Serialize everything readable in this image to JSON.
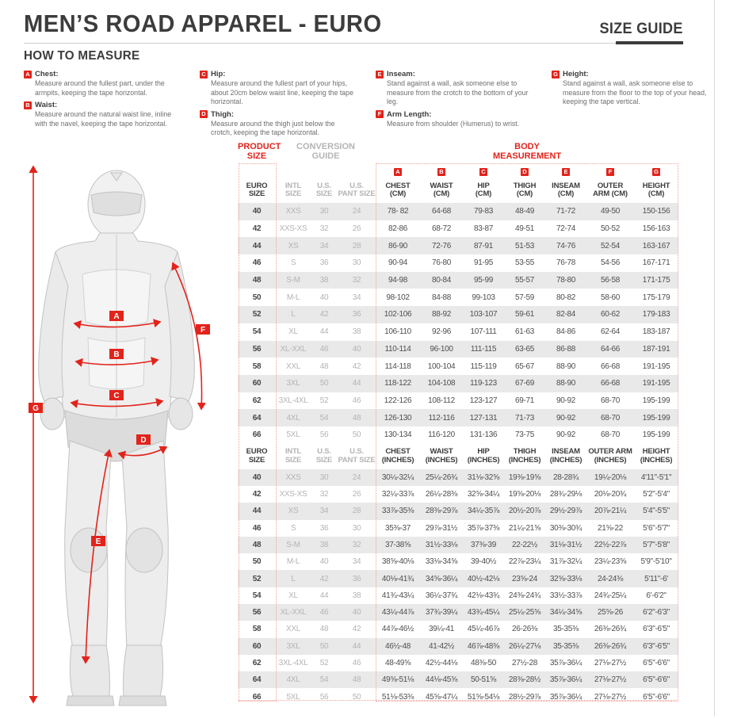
{
  "header": {
    "title": "MEN’S ROAD APPAREL - EURO",
    "badge": "SIZE GUIDE"
  },
  "how_to_measure": {
    "title": "HOW TO MEASURE",
    "columns": [
      [
        {
          "letter": "A",
          "name": "Chest:",
          "desc": "Measure around the fullest part, under the armpits, keeping the tape horizontal."
        },
        {
          "letter": "B",
          "name": "Waist:",
          "desc": "Measure around the natural waist line, inline with the navel, keeping the tape horizontal."
        }
      ],
      [
        {
          "letter": "C",
          "name": "Hip:",
          "desc": "Measure around the fullest part of your hips, about 20cm below waist line, keeping the tape horizontal."
        },
        {
          "letter": "D",
          "name": "Thigh:",
          "desc": "Measure around the thigh just below the crotch, keeping the tape horizontal."
        }
      ],
      [
        {
          "letter": "E",
          "name": "Inseam:",
          "desc": "Stand against a wall, ask someone else to measure from the crotch to the bottom of your leg."
        },
        {
          "letter": "F",
          "name": "Arm Length:",
          "desc": "Measure from shoulder (Humerus) to wrist."
        }
      ],
      [
        {
          "letter": "G",
          "name": "Height:",
          "desc": "Stand against a wall, ask someone else to measure from the floor to the top of your head, keeping the tape vertical."
        }
      ]
    ]
  },
  "figure": {
    "labels": [
      "A",
      "B",
      "C",
      "D",
      "E",
      "F",
      "G"
    ]
  },
  "table": {
    "group_product": "PRODUCT\nSIZE",
    "group_conversion": "CONVERSION\nGUIDE",
    "group_body": "BODY\nMEASUREMENT",
    "letters": [
      "A",
      "B",
      "C",
      "D",
      "E",
      "F",
      "G"
    ],
    "cm_header": [
      "EURO\nSIZE",
      "INTL\nSIZE",
      "U.S.\nSIZE",
      "U.S.\nPANT SIZE",
      "CHEST\n(CM)",
      "WAIST\n(CM)",
      "HIP\n(CM)",
      "THIGH\n(CM)",
      "INSEAM\n(CM)",
      "OUTER\nARM (CM)",
      "HEIGHT\n(CM)"
    ],
    "inch_header": [
      "EURO\nSIZE",
      "INTL\nSIZE",
      "U.S.\nSIZE",
      "U.S.\nPANT SIZE",
      "CHEST\n(INCHES)",
      "WAIST\n(INCHES)",
      "HIP\n(INCHES)",
      "THIGH\n(INCHES)",
      "INSEAM\n(INCHES)",
      "OUTER ARM\n(INCHES)",
      "HEIGHT\n(INCHES)"
    ],
    "cm_rows": [
      [
        "40",
        "XXS",
        "30",
        "24",
        "78- 82",
        "64-68",
        "79-83",
        "48-49",
        "71-72",
        "49-50",
        "150-156"
      ],
      [
        "42",
        "XXS-XS",
        "32",
        "26",
        "82-86",
        "68-72",
        "83-87",
        "49-51",
        "72-74",
        "50-52",
        "156-163"
      ],
      [
        "44",
        "XS",
        "34",
        "28",
        "86-90",
        "72-76",
        "87-91",
        "51-53",
        "74-76",
        "52-54",
        "163-167"
      ],
      [
        "46",
        "S",
        "36",
        "30",
        "90-94",
        "76-80",
        "91-95",
        "53-55",
        "76-78",
        "54-56",
        "167-171"
      ],
      [
        "48",
        "S-M",
        "38",
        "32",
        "94-98",
        "80-84",
        "95-99",
        "55-57",
        "78-80",
        "56-58",
        "171-175"
      ],
      [
        "50",
        "M-L",
        "40",
        "34",
        "98-102",
        "84-88",
        "99-103",
        "57-59",
        "80-82",
        "58-60",
        "175-179"
      ],
      [
        "52",
        "L",
        "42",
        "36",
        "102-106",
        "88-92",
        "103-107",
        "59-61",
        "82-84",
        "60-62",
        "179-183"
      ],
      [
        "54",
        "XL",
        "44",
        "38",
        "106-110",
        "92-96",
        "107-111",
        "61-63",
        "84-86",
        "62-64",
        "183-187"
      ],
      [
        "56",
        "XL-XXL",
        "46",
        "40",
        "110-114",
        "96-100",
        "111-115",
        "63-65",
        "86-88",
        "64-66",
        "187-191"
      ],
      [
        "58",
        "XXL",
        "48",
        "42",
        "114-118",
        "100-104",
        "115-119",
        "65-67",
        "88-90",
        "66-68",
        "191-195"
      ],
      [
        "60",
        "3XL",
        "50",
        "44",
        "118-122",
        "104-108",
        "119-123",
        "67-69",
        "88-90",
        "66-68",
        "191-195"
      ],
      [
        "62",
        "3XL-4XL",
        "52",
        "46",
        "122-126",
        "108-112",
        "123-127",
        "69-71",
        "90-92",
        "68-70",
        "195-199"
      ],
      [
        "64",
        "4XL",
        "54",
        "48",
        "126-130",
        "112-116",
        "127-131",
        "71-73",
        "90-92",
        "68-70",
        "195-199"
      ],
      [
        "66",
        "5XL",
        "56",
        "50",
        "130-134",
        "116-120",
        "131-136",
        "73-75",
        "90-92",
        "68-70",
        "195-199"
      ]
    ],
    "inch_rows": [
      [
        "40",
        "XXS",
        "30",
        "24",
        "30¼-32¼",
        "25¼-26¾",
        "31⅛-32⅝",
        "19⅜-19⅝",
        "28-28¾",
        "19¼-20⅛",
        "4'11\"-5'1\""
      ],
      [
        "42",
        "XXS-XS",
        "32",
        "26",
        "32¼-33⅞",
        "26¼-28⅜",
        "32⅝-34¼",
        "19⅝-20⅛",
        "28¾-29⅛",
        "20⅛-20¾",
        "5'2\"-5'4\""
      ],
      [
        "44",
        "XS",
        "34",
        "28",
        "33⅞-35⅜",
        "28⅜-29⅞",
        "34¼-35⅞",
        "20½-20⅞",
        "29½-29⅞",
        "20⅞-21¼",
        "5'4\"-5'5\""
      ],
      [
        "46",
        "S",
        "36",
        "30",
        "35⅜-37",
        "29⅞-31½",
        "35⅞-37⅜",
        "21¼-21⅝",
        "30⅜-30¾",
        "21⅝-22",
        "5'6\"-5'7\""
      ],
      [
        "48",
        "S-M",
        "38",
        "32",
        "37-38⅝",
        "31½-33⅛",
        "37⅜-39",
        "22-22½",
        "31⅛-31½",
        "22½-22⅞",
        "5'7\"-5'8\""
      ],
      [
        "50",
        "M-L",
        "40",
        "34",
        "38⅝-40⅛",
        "33⅛-34⅝",
        "39-40½",
        "22⅞-23¼",
        "31⅞-32¼",
        "23¼-23⅝",
        "5'9\"-5'10\""
      ],
      [
        "52",
        "L",
        "42",
        "36",
        "40⅛-41¾",
        "34⅝-36¼",
        "40½-42⅛",
        "23⅝-24",
        "32⅝-33⅛",
        "24-24⅜",
        "5'11\"-6'"
      ],
      [
        "54",
        "XL",
        "44",
        "38",
        "41¾-43¼",
        "36¼-37¾",
        "42⅛-43¾",
        "24⅜-24¾",
        "33½-33⅞",
        "24¾-25¼",
        "6'-6'2\""
      ],
      [
        "56",
        "XL-XXL",
        "46",
        "40",
        "43¼-44⅞",
        "37¾-39¼",
        "43¾-45¼",
        "25¼-25⅝",
        "34¼-34⅝",
        "25⅝-26",
        "6'2\"-6'3\""
      ],
      [
        "58",
        "XXL",
        "48",
        "42",
        "44⅞-46½",
        "39¼-41",
        "45¼-46⅞",
        "26-26⅜",
        "35-35⅜",
        "26⅜-26¾",
        "6'3\"-6'5\""
      ],
      [
        "60",
        "3XL",
        "50",
        "44",
        "46½-48",
        "41-42½",
        "46⅞-48⅜",
        "26¼-27⅛",
        "35-35⅜",
        "26⅜-26¾",
        "6'3\"-6'5\""
      ],
      [
        "62",
        "3XL-4XL",
        "52",
        "46",
        "48-49⅝",
        "42½-44⅛",
        "48⅜-50",
        "27½-28",
        "35⅞-36¼",
        "27⅛-27½",
        "6'5\"-6'6\""
      ],
      [
        "64",
        "4XL",
        "54",
        "48",
        "49⅝-51⅛",
        "44⅛-45⅝",
        "50-51⅝",
        "28⅜-28½",
        "35⅞-36¼",
        "27⅛-27½",
        "6'5\"-6'6\""
      ],
      [
        "66",
        "5XL",
        "56",
        "50",
        "51⅛-53⅜",
        "45⅝-47¼",
        "51⅝-54⅛",
        "28½-29⅞",
        "35⅞-36¼",
        "27⅛-27½",
        "6'5\"-6'6\""
      ]
    ]
  },
  "colors": {
    "accent_red": "#e2231b",
    "stripe_gray": "#e9e9e9",
    "muted_gray": "#b4b4b4",
    "ink": "#3c3c3c"
  }
}
